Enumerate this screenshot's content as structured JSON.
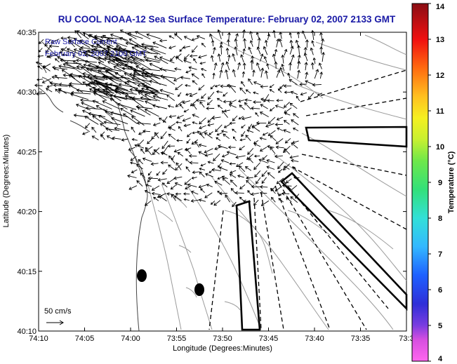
{
  "title": "RU COOL  NOAA-12  Sea Surface Temperature:  February 02, 2007 2133 GMT",
  "legend": {
    "line1": "Raw Surface Current",
    "line2": "February 02, 2007 2100 GMT",
    "scale_label": "50 cm/s"
  },
  "axes": {
    "xlabel": "Longitude (Degrees:Minutes)",
    "ylabel": "Latitude (Degrees:Minutes)",
    "x_ticks": [
      "74:10",
      "74:05",
      "74:00",
      "73:55",
      "73:50",
      "73:45",
      "73:40",
      "73:35",
      "73:3"
    ],
    "y_ticks": [
      "40:35",
      "40:30",
      "40:25",
      "40:20",
      "40:15",
      "40:10"
    ]
  },
  "colorbar": {
    "label": "Temperature (°C)",
    "ticks": [
      "14",
      "13",
      "12",
      "11",
      "10",
      "9",
      "8",
      "7",
      "6",
      "5",
      "4"
    ]
  },
  "colors": {
    "title": "#1a1aa6",
    "legend_text": "#1a1aa6",
    "coast": "#444444",
    "contour": "#9a9a9a",
    "vectors": "#000000"
  }
}
